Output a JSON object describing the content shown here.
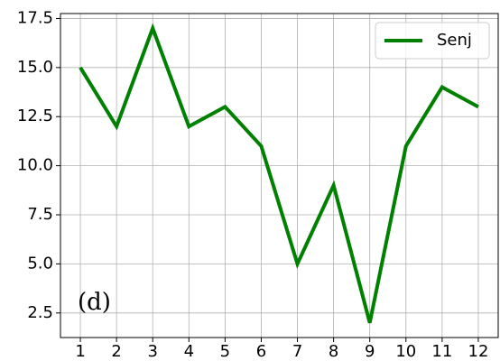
{
  "chart_data": {
    "type": "line",
    "annotation": "(d)",
    "x": [
      1,
      2,
      3,
      4,
      5,
      6,
      7,
      8,
      9,
      10,
      11,
      12
    ],
    "series": [
      {
        "name": "Senj",
        "color": "#008000",
        "values": [
          15,
          12,
          17,
          12,
          13,
          11,
          5,
          9,
          2,
          11,
          14,
          13
        ]
      }
    ],
    "xlim": [
      0.45,
      12.55
    ],
    "xticks": [
      1,
      2,
      3,
      4,
      5,
      6,
      7,
      8,
      9,
      10,
      11,
      12
    ],
    "ylim": [
      1.25,
      17.75
    ],
    "yticks": [
      {
        "value": 2.5,
        "label": "2.5"
      },
      {
        "value": 5,
        "label": "5.0"
      },
      {
        "value": 7.5,
        "label": "7.5"
      },
      {
        "value": 10,
        "label": "10.0"
      },
      {
        "value": 12.5,
        "label": "12.5"
      },
      {
        "value": 15,
        "label": "15.0"
      },
      {
        "value": 17.5,
        "label": "17.5"
      }
    ],
    "grid": true,
    "legend": "upper right"
  }
}
